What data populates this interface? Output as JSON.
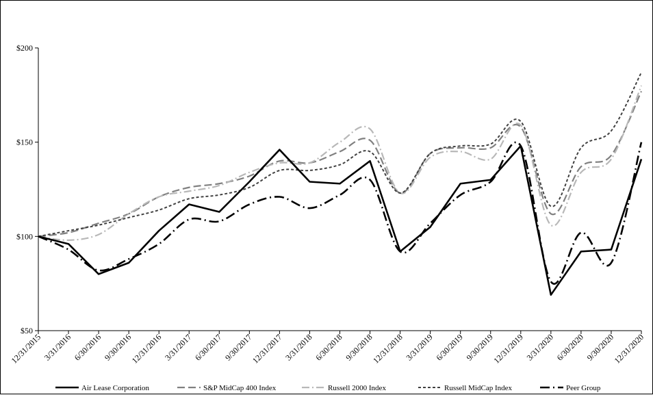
{
  "chart_data": {
    "type": "line",
    "title": "",
    "xlabel": "",
    "ylabel": "",
    "categories": [
      "12/31/2015",
      "3/31/2016",
      "6/30/2016",
      "9/30/2016",
      "12/31/2016",
      "3/31/2017",
      "6/30/2017",
      "9/30/2017",
      "12/31/2017",
      "3/31/2018",
      "6/30/2018",
      "9/30/2018",
      "12/31/2018",
      "3/31/2019",
      "6/30/2019",
      "9/30/2019",
      "12/31/2019",
      "3/31/2020",
      "6/30/2020",
      "9/30/2020",
      "12/31/2020"
    ],
    "ylim": [
      50,
      200
    ],
    "yticks": [
      50,
      100,
      150,
      200
    ],
    "ytick_labels": [
      "$50",
      "$100",
      "$150",
      "$200"
    ],
    "grid": false,
    "legend_position": "bottom",
    "series": [
      {
        "name": "Air Lease Corporation",
        "color": "#000000",
        "style": "solid-thick",
        "values": [
          100,
          96,
          80,
          86,
          103,
          117,
          113,
          129,
          146,
          129,
          128,
          140,
          92,
          105,
          128,
          130,
          148,
          69,
          92,
          93,
          141
        ]
      },
      {
        "name": "S&P MidCap 400 Index",
        "color": "#808080",
        "style": "long-dash",
        "values": [
          100,
          102,
          107,
          112,
          121,
          126,
          128,
          132,
          140,
          139,
          145,
          151,
          123,
          144,
          147,
          147,
          158,
          112,
          137,
          143,
          177
        ]
      },
      {
        "name": "Russell 2000 Index",
        "color": "#b8b8b8",
        "style": "dash-dot",
        "values": [
          100,
          98,
          101,
          112,
          121,
          124,
          127,
          134,
          139,
          139,
          150,
          157,
          123,
          142,
          145,
          141,
          159,
          106,
          134,
          141,
          180
        ]
      },
      {
        "name": "Russell MidCap Index",
        "color": "#404040",
        "style": "short-dash",
        "values": [
          100,
          103,
          106,
          110,
          114,
          120,
          122,
          126,
          135,
          135,
          138,
          145,
          123,
          144,
          148,
          149,
          161,
          116,
          147,
          156,
          187
        ]
      },
      {
        "name": "Peer Group",
        "color": "#000000",
        "style": "dash-dot-thick",
        "values": [
          100,
          93,
          82,
          88,
          96,
          109,
          108,
          117,
          121,
          115,
          122,
          130,
          92,
          107,
          122,
          129,
          148,
          76,
          102,
          86,
          150
        ]
      }
    ]
  }
}
